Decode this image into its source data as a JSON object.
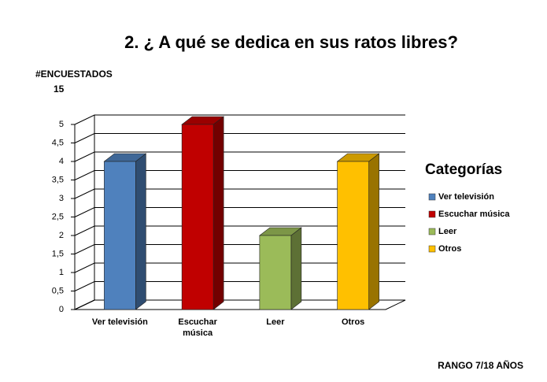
{
  "chart_data": {
    "type": "bar3d",
    "title": "2. ¿ A qué se dedica  en sus ratos libres?",
    "y_axis_label": "#ENCUESTADOS",
    "y_axis_note": "15",
    "categories": [
      "Ver televisión",
      "Escuchar música",
      "Leer",
      "Otros"
    ],
    "values": [
      4,
      5,
      2,
      4
    ],
    "colors": [
      "#4f81bd",
      "#c00000",
      "#9bbb59",
      "#ffc000"
    ],
    "ylim": [
      0,
      5
    ],
    "yticks": [
      0,
      {
        "value": 0.5,
        "label": "0,5"
      },
      1,
      {
        "value": 1.5,
        "label": "1,5"
      },
      2,
      {
        "value": 2.5,
        "label": "2,5"
      },
      3,
      {
        "value": 3.5,
        "label": "3,5"
      },
      4,
      {
        "value": 4.5,
        "label": "4,5"
      },
      5
    ],
    "grid": true,
    "legend_title": "Categorías",
    "legend_position": "right",
    "footer": "RANGO 7/18 AÑOS"
  }
}
